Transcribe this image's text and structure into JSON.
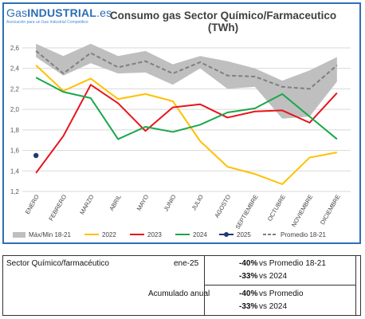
{
  "logo": {
    "brand_gas": "Gas",
    "brand_rest": "INDUSTRIAL",
    "brand_tld": ".es",
    "tagline": "Asociación para un Gas Industrial Competitivo"
  },
  "chart_data": {
    "type": "line",
    "title": "Consumo gas Sector Químico/Farmaceutico (TWh)",
    "categories": [
      "ENERO",
      "FEBRERO",
      "MARZO",
      "ABRIL",
      "MAYO",
      "JUNIO",
      "JULIO",
      "AGOSTO",
      "SEPTIEMBRE",
      "OCTUBRE",
      "NOVIEMBRE",
      "DICIEMBRE"
    ],
    "ylim": [
      1.2,
      2.6
    ],
    "yticks": [
      "1,2",
      "1,4",
      "1,6",
      "1,8",
      "2,0",
      "2,2",
      "2,4",
      "2,6"
    ],
    "ytick_values": [
      1.2,
      1.4,
      1.6,
      1.8,
      2.0,
      2.2,
      2.4,
      2.6
    ],
    "grid": true,
    "legend_placement": "bottom",
    "band": {
      "name": "Máx/Min 18-21",
      "color": "#bfbfbf",
      "max": [
        2.64,
        2.52,
        2.64,
        2.52,
        2.57,
        2.44,
        2.52,
        2.47,
        2.4,
        2.28,
        2.38,
        2.51
      ],
      "min": [
        2.51,
        2.33,
        2.45,
        2.35,
        2.36,
        2.24,
        2.4,
        2.2,
        2.22,
        1.91,
        1.93,
        2.27
      ]
    },
    "series": [
      {
        "name": "2022",
        "color": "#ffc000",
        "style": "solid",
        "values": [
          2.43,
          2.18,
          2.3,
          2.1,
          2.15,
          2.08,
          1.69,
          1.44,
          1.37,
          1.27,
          1.53,
          1.58
        ]
      },
      {
        "name": "2023",
        "color": "#e8141c",
        "style": "solid",
        "values": [
          1.38,
          1.74,
          2.24,
          2.06,
          1.79,
          2.02,
          2.05,
          1.92,
          1.98,
          1.99,
          1.87,
          2.16
        ]
      },
      {
        "name": "2024",
        "color": "#1aa74a",
        "style": "solid",
        "values": [
          2.31,
          2.17,
          2.11,
          1.71,
          1.83,
          1.78,
          1.85,
          1.97,
          2.01,
          2.15,
          1.93,
          1.71
        ]
      },
      {
        "name": "2025",
        "color": "#1f3a73",
        "style": "marker",
        "values": [
          1.55,
          null,
          null,
          null,
          null,
          null,
          null,
          null,
          null,
          null,
          null,
          null
        ]
      },
      {
        "name": "Promedio 18-21",
        "color": "#7f7f7f",
        "style": "dashed",
        "values": [
          2.57,
          2.35,
          2.55,
          2.41,
          2.47,
          2.35,
          2.46,
          2.33,
          2.32,
          2.22,
          2.2,
          2.43
        ]
      }
    ]
  },
  "summary": {
    "sector": "Sector Químico/farmacéutico",
    "period": "ene-25",
    "accum_label": "Acumulado anual",
    "rows": [
      {
        "pct": "-40%",
        "desc": "vs Promedio 18-21"
      },
      {
        "pct": "-33%",
        "desc": "vs 2024"
      },
      {
        "pct": "-40%",
        "desc": "vs Promedio"
      },
      {
        "pct": "-33%",
        "desc": "vs 2024"
      }
    ]
  }
}
